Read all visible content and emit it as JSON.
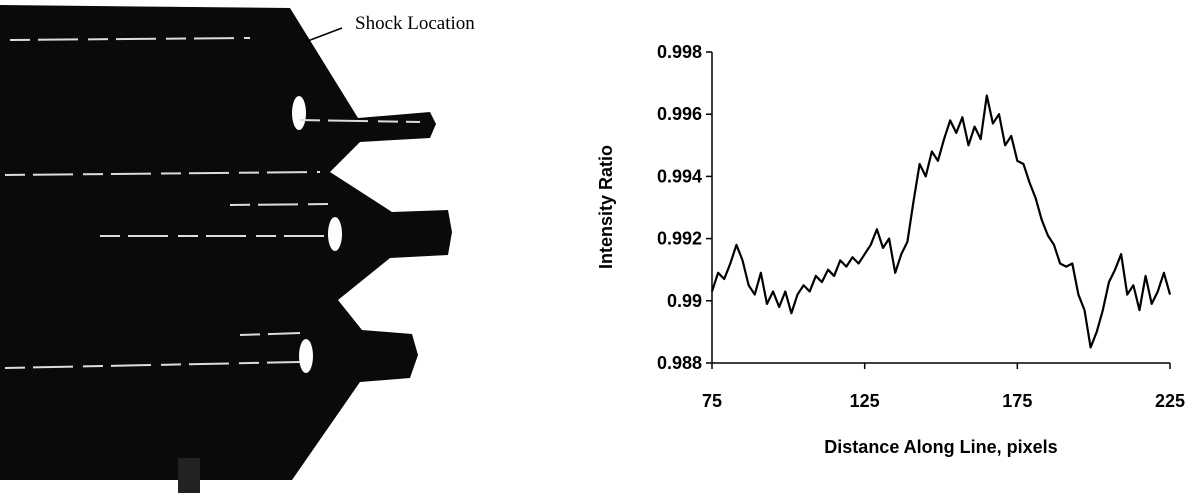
{
  "chart_data": {
    "type": "line",
    "annotation": "Shock Location",
    "x_label": "Distance Along Line, pixels",
    "y_label": "Intensity Ratio",
    "xlim": [
      75,
      225
    ],
    "xticks": [
      75,
      125,
      175,
      225
    ],
    "ylim": [
      0.988,
      0.998
    ],
    "yticks": [
      0.988,
      0.99,
      0.992,
      0.994,
      0.996,
      0.998
    ],
    "grid": false,
    "series": [
      {
        "color": "#000000",
        "x": [
          75,
          77,
          79,
          81,
          83,
          85,
          87,
          89,
          91,
          93,
          95,
          97,
          99,
          101,
          103,
          105,
          107,
          109,
          111,
          113,
          115,
          117,
          119,
          121,
          123,
          125,
          127,
          129,
          131,
          133,
          135,
          137,
          139,
          141,
          143,
          145,
          147,
          149,
          151,
          153,
          155,
          157,
          159,
          161,
          163,
          165,
          167,
          169,
          171,
          173,
          175,
          177,
          179,
          181,
          183,
          185,
          187,
          189,
          191,
          193,
          195,
          197,
          199,
          201,
          203,
          205,
          207,
          209,
          211,
          213,
          215,
          217,
          219,
          221,
          223,
          225
        ],
        "values": [
          0.9903,
          0.9909,
          0.9907,
          0.9912,
          0.9918,
          0.9913,
          0.9905,
          0.9902,
          0.9909,
          0.9899,
          0.9903,
          0.9898,
          0.9903,
          0.9896,
          0.9902,
          0.9905,
          0.9903,
          0.9908,
          0.9906,
          0.991,
          0.9908,
          0.9913,
          0.9911,
          0.9914,
          0.9912,
          0.9915,
          0.9918,
          0.9923,
          0.9917,
          0.992,
          0.9909,
          0.9915,
          0.9919,
          0.9932,
          0.9944,
          0.994,
          0.9948,
          0.9945,
          0.9952,
          0.9958,
          0.9954,
          0.9959,
          0.995,
          0.9956,
          0.9952,
          0.9966,
          0.9957,
          0.996,
          0.995,
          0.9953,
          0.9945,
          0.9944,
          0.9938,
          0.9933,
          0.9926,
          0.9921,
          0.9918,
          0.9912,
          0.9911,
          0.9912,
          0.9902,
          0.9897,
          0.9885,
          0.989,
          0.9897,
          0.9906,
          0.991,
          0.9915,
          0.9902,
          0.9905,
          0.9897,
          0.9908,
          0.9899,
          0.9903,
          0.9909,
          0.9902
        ]
      }
    ]
  }
}
